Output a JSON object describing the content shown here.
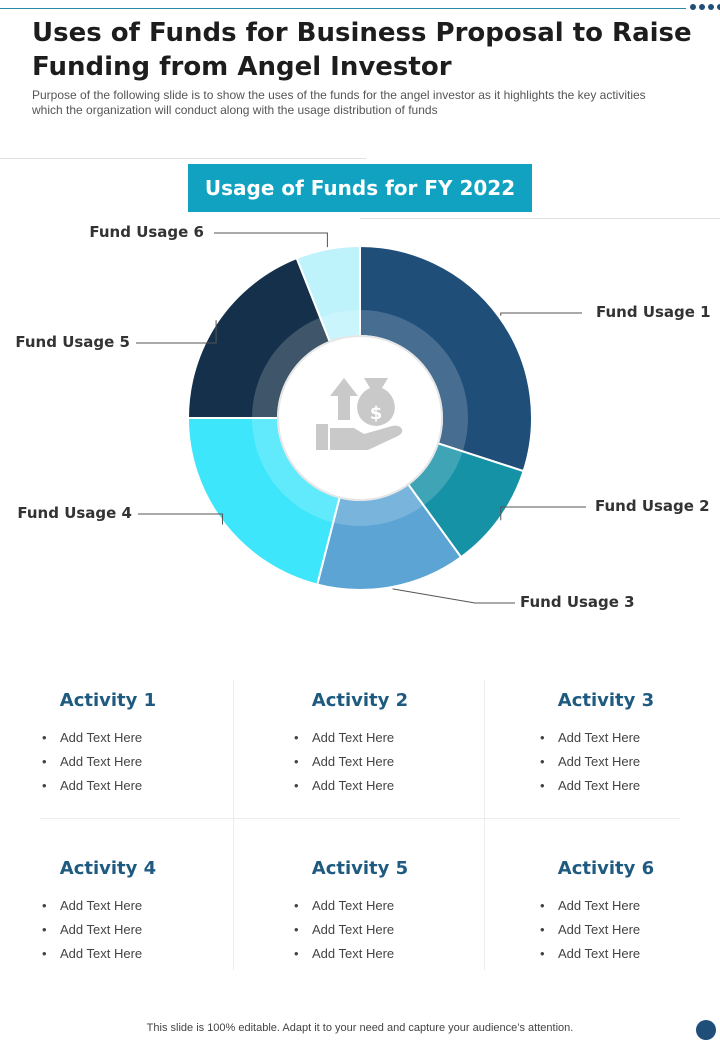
{
  "slide": {
    "title": "Uses of Funds for Business Proposal to Raise Funding from Angel Investor",
    "subtitle": "Purpose of the following slide is to show the uses of the funds for the angel investor as it highlights the key activities which the organization will conduct along with the usage distribution of funds",
    "footer": "This slide is 100% editable. Adapt it to your need and capture your audience’s attention."
  },
  "chart_data": {
    "type": "pie",
    "title": "Usage of Funds for FY 2022",
    "labels": [
      "Fund Usage 1",
      "Fund Usage 2",
      "Fund Usage 3",
      "Fund Usage 4",
      "Fund Usage 5",
      "Fund Usage 6"
    ],
    "values": [
      30,
      10,
      14,
      21,
      19,
      6
    ],
    "colors": [
      "#1f4e79",
      "#1592a6",
      "#5ba4d4",
      "#3de6fa",
      "#14304a",
      "#bff3fc"
    ]
  },
  "center_icon": "money-bag-hand-icon",
  "activities": [
    {
      "title": "Activity 1",
      "items": [
        "Add Text Here",
        "Add Text Here",
        "Add Text Here"
      ]
    },
    {
      "title": "Activity 2",
      "items": [
        "Add Text Here",
        "Add Text Here",
        "Add Text Here"
      ]
    },
    {
      "title": "Activity 3",
      "items": [
        "Add Text Here",
        "Add Text Here",
        "Add Text Here"
      ]
    },
    {
      "title": "Activity 4",
      "items": [
        "Add Text Here",
        "Add Text Here",
        "Add Text Here"
      ]
    },
    {
      "title": "Activity 5",
      "items": [
        "Add Text Here",
        "Add Text Here",
        "Add Text Here"
      ]
    },
    {
      "title": "Activity 6",
      "items": [
        "Add Text Here",
        "Add Text Here",
        "Add Text Here"
      ]
    }
  ]
}
